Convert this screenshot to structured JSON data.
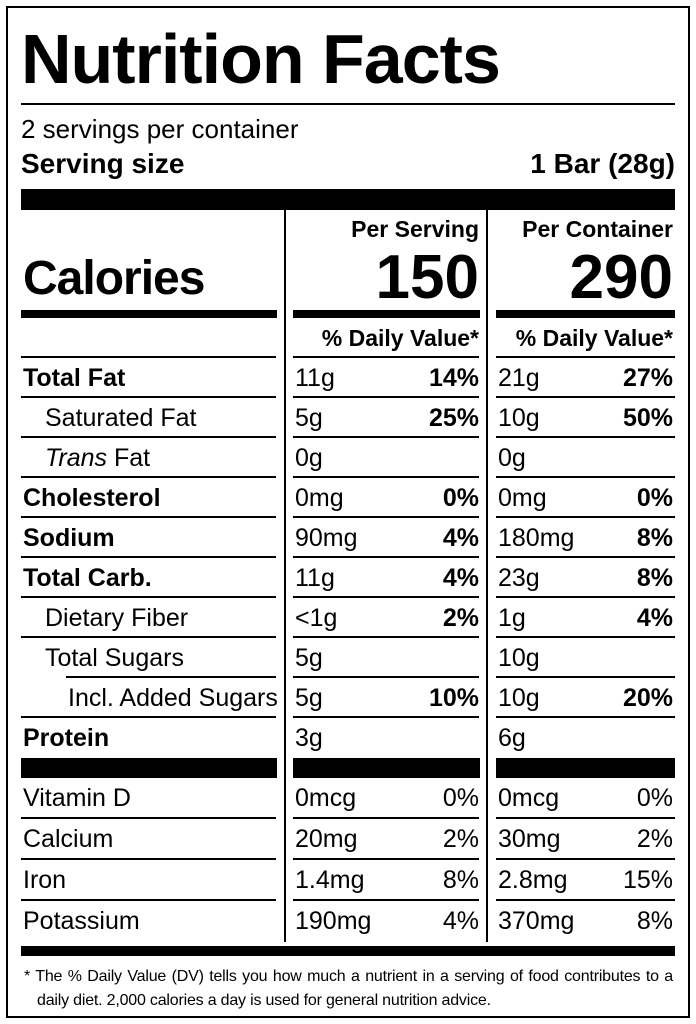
{
  "label": {
    "title": "Nutrition Facts",
    "servings_per_container": "2 servings per container",
    "serving_size_label": "Serving size",
    "serving_size_value": "1 Bar (28g)",
    "col_headers": {
      "per_serving": "Per Serving",
      "per_container": "Per Container"
    },
    "calories": {
      "label": "Calories",
      "per_serving": "150",
      "per_container": "290"
    },
    "daily_value_header": "% Daily Value*",
    "nutrients": [
      {
        "name": "Total Fat",
        "bold": true,
        "indent": 0,
        "ps_amount": "11g",
        "ps_dv": "14%",
        "pc_amount": "21g",
        "pc_dv": "27%"
      },
      {
        "name": "Saturated Fat",
        "bold": false,
        "indent": 1,
        "ps_amount": "5g",
        "ps_dv": "25%",
        "pc_amount": "10g",
        "pc_dv": "50%"
      },
      {
        "name_italic": "Trans",
        "name": " Fat",
        "bold": false,
        "indent": 1,
        "ps_amount": "0g",
        "ps_dv": "",
        "pc_amount": "0g",
        "pc_dv": ""
      },
      {
        "name": "Cholesterol",
        "bold": true,
        "indent": 0,
        "ps_amount": "0mg",
        "ps_dv": "0%",
        "pc_amount": "0mg",
        "pc_dv": "0%"
      },
      {
        "name": "Sodium",
        "bold": true,
        "indent": 0,
        "ps_amount": "90mg",
        "ps_dv": "4%",
        "pc_amount": "180mg",
        "pc_dv": "8%"
      },
      {
        "name": "Total Carb.",
        "bold": true,
        "indent": 0,
        "ps_amount": "11g",
        "ps_dv": "4%",
        "pc_amount": "23g",
        "pc_dv": "8%"
      },
      {
        "name": "Dietary Fiber",
        "bold": false,
        "indent": 1,
        "ps_amount": "<1g",
        "ps_dv": "2%",
        "pc_amount": "1g",
        "pc_dv": "4%"
      },
      {
        "name": "Total Sugars",
        "bold": false,
        "indent": 1,
        "ps_amount": "5g",
        "ps_dv": "",
        "pc_amount": "10g",
        "pc_dv": "",
        "rule_after_indent": true
      },
      {
        "name": "Incl. Added Sugars",
        "bold": false,
        "indent": 2,
        "ps_amount": "5g",
        "ps_dv": "10%",
        "pc_amount": "10g",
        "pc_dv": "20%"
      },
      {
        "name": "Protein",
        "bold": true,
        "indent": 0,
        "ps_amount": "3g",
        "ps_dv": "",
        "pc_amount": "6g",
        "pc_dv": "",
        "no_rule_after": true
      }
    ],
    "vitamins": [
      {
        "name": "Vitamin D",
        "ps_amount": "0mcg",
        "ps_dv": "0%",
        "pc_amount": "0mcg",
        "pc_dv": "0%"
      },
      {
        "name": "Calcium",
        "ps_amount": "20mg",
        "ps_dv": "2%",
        "pc_amount": "30mg",
        "pc_dv": "2%"
      },
      {
        "name": "Iron",
        "ps_amount": "1.4mg",
        "ps_dv": "8%",
        "pc_amount": "2.8mg",
        "pc_dv": "15%"
      },
      {
        "name": "Potassium",
        "ps_amount": "190mg",
        "ps_dv": "4%",
        "pc_amount": "370mg",
        "pc_dv": "8%",
        "no_rule_after": true
      }
    ],
    "footnote_marker": "*",
    "footnote": "The % Daily Value (DV) tells you how much a nutrient in a serving of food contributes to a daily diet. 2,000 calories a day is used for general nutrition advice.",
    "colors": {
      "ink": "#000000",
      "paper": "#ffffff"
    }
  }
}
